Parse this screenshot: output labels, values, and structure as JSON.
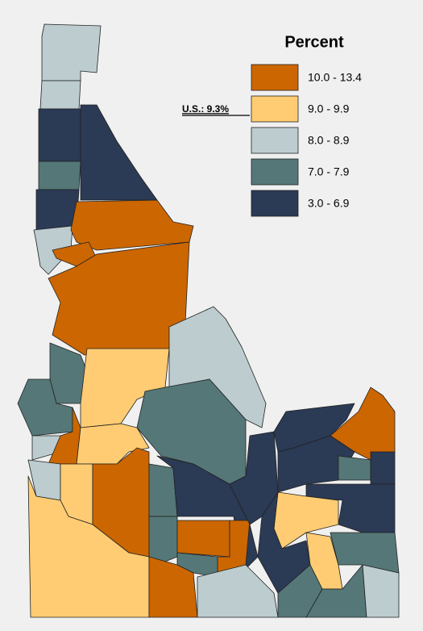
{
  "legend": {
    "title": "Percent",
    "classes": [
      {
        "label": "10.0 - 13.4",
        "color": "#cc6600"
      },
      {
        "label": "9.0 - 9.9",
        "color": "#ffcc73"
      },
      {
        "label": "8.0 - 8.9",
        "color": "#bccccf"
      },
      {
        "label": "7.0 - 7.9",
        "color": "#557777"
      },
      {
        "label": "3.0 - 6.9",
        "color": "#2b3a55"
      }
    ]
  },
  "annotation": "U.S.: 9.3%"
}
